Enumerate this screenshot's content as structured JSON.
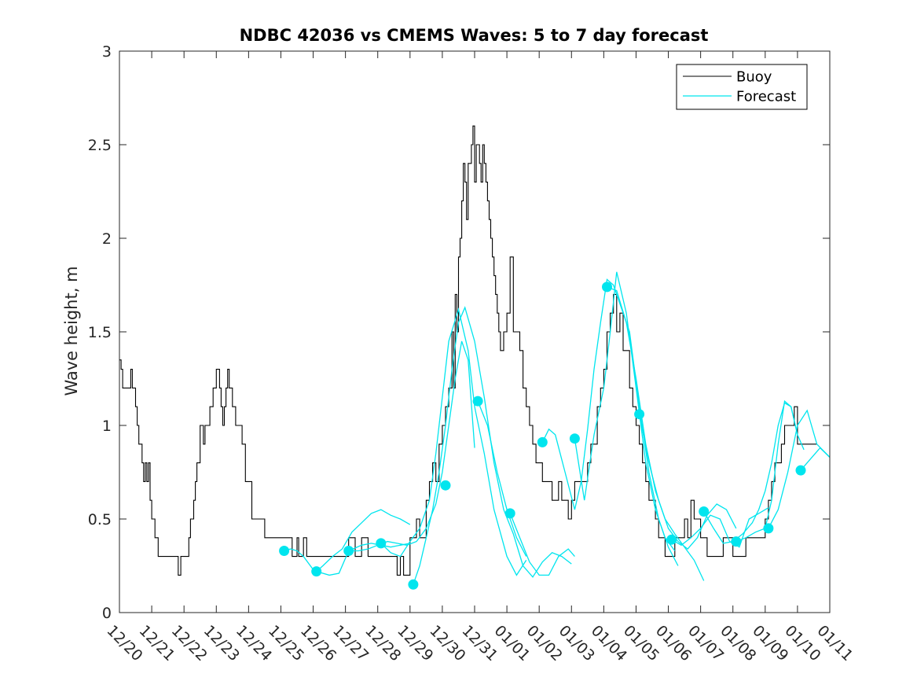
{
  "chart_data": {
    "type": "line",
    "title": "NDBC 42036 vs CMEMS Waves: 5 to 7 day forecast",
    "xlabel": "",
    "ylabel": "Wave height, m",
    "ylim": [
      0,
      3
    ],
    "xlim": [
      0,
      22
    ],
    "yticks": [
      0,
      0.5,
      1,
      1.5,
      2,
      2.5,
      3
    ],
    "ytick_labels": [
      "0",
      "0.5",
      "1",
      "1.5",
      "2",
      "2.5",
      "3"
    ],
    "xtick_labels": [
      "12/20",
      "12/21",
      "12/22",
      "12/23",
      "12/24",
      "12/25",
      "12/26",
      "12/27",
      "12/28",
      "12/29",
      "12/30",
      "12/31",
      "01/01",
      "01/02",
      "01/03",
      "01/04",
      "01/05",
      "01/06",
      "01/07",
      "01/08",
      "01/09",
      "01/10",
      "01/11"
    ],
    "legend": {
      "position": "top-right",
      "entries": [
        "Buoy",
        "Forecast"
      ]
    },
    "colors": {
      "buoy": "#000000",
      "forecast": "#00e5ee",
      "axes": "#262626"
    },
    "series": [
      {
        "name": "Buoy",
        "color": "#000000",
        "step": true,
        "x": [
          0,
          0.05,
          0.1,
          0.2,
          0.3,
          0.35,
          0.4,
          0.5,
          0.55,
          0.6,
          0.7,
          0.75,
          0.8,
          0.85,
          0.9,
          0.95,
          1,
          1.1,
          1.2,
          1.3,
          1.35,
          1.5,
          1.8,
          1.82,
          1.9,
          2.1,
          2.15,
          2.2,
          2.3,
          2.35,
          2.4,
          2.5,
          2.6,
          2.65,
          2.7,
          2.8,
          2.9,
          3,
          3.1,
          3.15,
          3.2,
          3.25,
          3.3,
          3.35,
          3.4,
          3.5,
          3.6,
          3.7,
          3.8,
          3.9,
          4.1,
          4.5,
          4.8,
          5,
          5.3,
          5.35,
          5.5,
          5.55,
          5.7,
          5.8,
          6,
          6.3,
          6.5,
          6.8,
          7.1,
          7.3,
          7.5,
          7.7,
          8,
          8.3,
          8.4,
          8.6,
          8.7,
          8.8,
          9,
          9.2,
          9.3,
          9.5,
          9.6,
          9.7,
          9.8,
          9.9,
          10,
          10.1,
          10.2,
          10.3,
          10.35,
          10.4,
          10.45,
          10.5,
          10.55,
          10.6,
          10.65,
          10.7,
          10.75,
          10.8,
          10.85,
          10.9,
          10.95,
          11,
          11.05,
          11.1,
          11.15,
          11.2,
          11.25,
          11.3,
          11.35,
          11.4,
          11.45,
          11.5,
          11.55,
          11.6,
          11.65,
          11.7,
          11.75,
          11.8,
          11.9,
          12,
          12.1,
          12.2,
          12.3,
          12.4,
          12.5,
          12.6,
          12.7,
          12.8,
          12.9,
          13,
          13.1,
          13.2,
          13.3,
          13.4,
          13.5,
          13.6,
          13.7,
          13.8,
          13.9,
          14,
          14.1,
          14.3,
          14.5,
          14.6,
          14.7,
          14.8,
          14.9,
          15,
          15.1,
          15.2,
          15.3,
          15.4,
          15.5,
          15.6,
          15.7,
          15.8,
          15.9,
          16,
          16.1,
          16.2,
          16.3,
          16.4,
          16.5,
          16.6,
          16.7,
          16.8,
          16.9,
          17,
          17.1,
          17.2,
          17.3,
          17.5,
          17.6,
          17.7,
          17.8,
          17.9,
          18,
          18.1,
          18.2,
          18.3,
          18.5,
          18.7,
          19,
          19.2,
          19.4,
          19.6,
          19.8,
          20,
          20.1,
          20.2,
          20.3,
          20.4,
          20.5,
          20.6,
          20.7,
          20.8,
          20.9,
          21,
          21.1,
          21.2,
          21.3,
          21.4,
          21.5,
          21.6
        ],
        "y": [
          1.35,
          1.3,
          1.2,
          1.2,
          1.2,
          1.3,
          1.2,
          1.1,
          1.0,
          0.9,
          0.8,
          0.7,
          0.8,
          0.7,
          0.8,
          0.6,
          0.5,
          0.4,
          0.3,
          0.3,
          0.3,
          0.3,
          0.3,
          0.2,
          0.3,
          0.3,
          0.4,
          0.5,
          0.6,
          0.7,
          0.8,
          1.0,
          0.9,
          1.0,
          1.0,
          1.1,
          1.2,
          1.3,
          1.2,
          1.1,
          1.0,
          1.1,
          1.2,
          1.3,
          1.2,
          1.1,
          1.0,
          1.0,
          0.9,
          0.7,
          0.5,
          0.4,
          0.4,
          0.4,
          0.4,
          0.3,
          0.4,
          0.3,
          0.4,
          0.3,
          0.3,
          0.3,
          0.3,
          0.3,
          0.4,
          0.3,
          0.4,
          0.3,
          0.3,
          0.3,
          0.3,
          0.2,
          0.3,
          0.2,
          0.4,
          0.5,
          0.4,
          0.6,
          0.7,
          0.8,
          0.7,
          0.9,
          1.0,
          1.1,
          1.2,
          1.5,
          1.2,
          1.7,
          1.5,
          1.9,
          2.0,
          2.2,
          2.4,
          2.3,
          2.1,
          2.4,
          2.4,
          2.5,
          2.6,
          2.3,
          2.5,
          2.5,
          2.4,
          2.3,
          2.5,
          2.4,
          2.3,
          2.2,
          2.1,
          2.0,
          1.9,
          1.8,
          1.7,
          1.6,
          1.5,
          1.4,
          1.5,
          1.6,
          1.9,
          1.5,
          1.5,
          1.4,
          1.2,
          1.1,
          1.0,
          0.9,
          0.8,
          0.8,
          0.7,
          0.7,
          0.7,
          0.6,
          0.6,
          0.7,
          0.6,
          0.6,
          0.5,
          0.6,
          0.7,
          0.7,
          0.8,
          0.9,
          0.9,
          1.1,
          1.2,
          1.3,
          1.5,
          1.6,
          1.7,
          1.5,
          1.6,
          1.4,
          1.4,
          1.2,
          1.1,
          1.0,
          0.9,
          0.8,
          0.7,
          0.6,
          0.6,
          0.5,
          0.4,
          0.4,
          0.3,
          0.3,
          0.3,
          0.4,
          0.4,
          0.5,
          0.4,
          0.6,
          0.5,
          0.5,
          0.4,
          0.4,
          0.3,
          0.3,
          0.3,
          0.4,
          0.3,
          0.3,
          0.4,
          0.4,
          0.4,
          0.5,
          0.6,
          0.7,
          0.8,
          0.8,
          0.9,
          1.0,
          1.0,
          1.0,
          1.1,
          0.9,
          0.9,
          0.9,
          0.9,
          0.9,
          0.9,
          0.9
        ]
      },
      {
        "name": "Forecast",
        "color": "#00e5ee",
        "segments": [
          {
            "x": [
              5.1,
              5.3,
              5.5,
              5.7,
              6.0
            ],
            "y": [
              0.33,
              0.34,
              0.33,
              0.3,
              0.23
            ]
          },
          {
            "x": [
              6.1,
              6.3,
              6.6,
              6.9,
              7.2,
              7.5,
              7.8,
              8.1,
              8.4,
              8.7,
              9.0
            ],
            "y": [
              0.22,
              0.25,
              0.3,
              0.34,
              0.43,
              0.48,
              0.53,
              0.55,
              0.52,
              0.5,
              0.47
            ]
          },
          {
            "x": [
              6.1,
              6.5,
              6.8,
              7.1,
              7.5,
              7.8,
              8.1,
              8.4,
              8.7,
              9.0
            ],
            "y": [
              0.22,
              0.2,
              0.21,
              0.33,
              0.36,
              0.37,
              0.36,
              0.35,
              0.36,
              0.37
            ]
          },
          {
            "x": [
              7.1,
              7.4,
              7.7,
              8.0,
              8.3,
              8.6,
              8.9,
              9.2,
              9.5,
              9.8,
              10.0,
              10.2,
              10.4,
              10.6,
              10.8,
              11.0
            ],
            "y": [
              0.33,
              0.33,
              0.34,
              0.36,
              0.38,
              0.37,
              0.36,
              0.38,
              0.45,
              0.58,
              0.75,
              1.0,
              1.25,
              1.45,
              1.35,
              0.88
            ]
          },
          {
            "x": [
              8.1,
              8.4,
              8.7,
              9.0,
              9.3,
              9.6,
              9.8,
              10.0,
              10.2,
              10.5,
              10.8,
              11.0,
              11.3,
              11.6,
              12.0,
              12.3,
              12.6
            ],
            "y": [
              0.37,
              0.32,
              0.3,
              0.38,
              0.45,
              0.6,
              0.85,
              1.15,
              1.45,
              1.62,
              1.4,
              1.1,
              0.85,
              0.55,
              0.3,
              0.2,
              0.28
            ]
          },
          {
            "x": [
              9.1,
              9.3,
              9.5,
              9.7,
              9.9,
              10.1,
              10.3,
              10.5,
              10.7,
              11.0,
              11.3,
              11.6,
              11.9,
              12.2,
              12.5,
              12.8,
              13.1,
              13.4,
              13.7,
              14.0
            ],
            "y": [
              0.15,
              0.25,
              0.4,
              0.55,
              0.75,
              1.0,
              1.3,
              1.55,
              1.63,
              1.45,
              1.15,
              0.8,
              0.55,
              0.42,
              0.25,
              0.19,
              0.27,
              0.32,
              0.3,
              0.26
            ]
          },
          {
            "x": [
              11.1,
              11.4,
              11.7,
              12.0,
              12.3,
              12.6
            ],
            "y": [
              1.13,
              1.0,
              0.75,
              0.55,
              0.4,
              0.3
            ]
          },
          {
            "x": [
              12.1,
              12.4,
              12.7,
              13.0,
              13.3,
              13.6,
              13.9,
              14.1
            ],
            "y": [
              0.53,
              0.4,
              0.27,
              0.2,
              0.2,
              0.3,
              0.34,
              0.3
            ]
          },
          {
            "x": [
              13.1,
              13.3,
              13.5,
              13.8,
              14.1,
              14.3,
              14.5,
              14.7,
              14.9,
              15.1,
              15.3,
              15.5,
              15.8,
              16.1,
              16.4,
              16.7,
              17.0,
              17.3
            ],
            "y": [
              0.91,
              0.98,
              0.95,
              0.75,
              0.55,
              0.7,
              0.98,
              1.3,
              1.55,
              1.78,
              1.75,
              1.65,
              1.5,
              1.1,
              0.75,
              0.5,
              0.35,
              0.25
            ]
          },
          {
            "x": [
              14.1,
              14.4,
              14.7,
              15.0,
              15.2,
              15.4,
              15.7,
              16.0,
              16.3,
              16.6,
              16.9,
              17.2
            ],
            "y": [
              0.93,
              0.6,
              0.95,
              1.2,
              1.5,
              1.82,
              1.6,
              1.2,
              0.8,
              0.55,
              0.4,
              0.33
            ]
          },
          {
            "x": [
              15.1,
              15.4,
              15.7,
              16.0,
              16.3,
              16.6,
              16.9,
              17.2,
              17.5,
              17.8,
              18.1
            ],
            "y": [
              1.74,
              1.72,
              1.55,
              1.25,
              0.9,
              0.65,
              0.5,
              0.42,
              0.35,
              0.28,
              0.17
            ]
          },
          {
            "x": [
              16.1,
              16.4,
              16.7,
              17.0,
              17.3,
              17.6,
              17.9,
              18.2,
              18.5,
              18.8,
              19.1
            ],
            "y": [
              1.06,
              0.8,
              0.6,
              0.45,
              0.38,
              0.34,
              0.4,
              0.52,
              0.58,
              0.55,
              0.45
            ]
          },
          {
            "x": [
              17.1,
              17.4,
              17.7,
              18.0,
              18.3,
              18.6,
              18.9,
              19.2,
              19.5,
              19.8,
              20.1
            ],
            "y": [
              0.39,
              0.36,
              0.4,
              0.45,
              0.52,
              0.5,
              0.38,
              0.35,
              0.5,
              0.53,
              0.56
            ]
          },
          {
            "x": [
              18.1,
              18.4,
              18.7,
              19.0,
              19.3,
              19.6,
              19.8,
              20.0,
              20.2,
              20.4,
              20.6,
              20.8,
              21.0
            ],
            "y": [
              0.54,
              0.45,
              0.37,
              0.38,
              0.42,
              0.48,
              0.55,
              0.65,
              0.8,
              1.0,
              1.12,
              1.1,
              0.95
            ]
          },
          {
            "x": [
              19.1,
              19.4,
              19.7,
              20.0,
              20.2,
              20.4,
              20.6,
              20.8,
              21.0,
              21.2
            ],
            "y": [
              0.38,
              0.4,
              0.43,
              0.45,
              0.6,
              0.9,
              1.13,
              1.1,
              0.95,
              0.87
            ]
          },
          {
            "x": [
              20.1,
              20.4,
              20.7,
              21.0,
              21.3,
              21.6,
              22.0
            ],
            "y": [
              0.45,
              0.55,
              0.75,
              1.0,
              1.08,
              0.9,
              0.83
            ]
          },
          {
            "x": [
              21.1,
              21.4,
              21.7,
              22.0
            ],
            "y": [
              0.76,
              0.82,
              0.88,
              0.83
            ]
          }
        ],
        "markers": {
          "x": [
            5.1,
            6.1,
            7.1,
            8.1,
            9.1,
            10.1,
            11.1,
            12.1,
            13.1,
            14.1,
            15.1,
            16.1,
            17.1,
            18.1,
            19.1,
            20.1,
            21.1
          ],
          "y": [
            0.33,
            0.22,
            0.33,
            0.37,
            0.15,
            0.68,
            1.13,
            0.53,
            0.91,
            0.93,
            1.74,
            1.06,
            0.39,
            0.54,
            0.38,
            0.45,
            0.76
          ]
        }
      }
    ]
  }
}
